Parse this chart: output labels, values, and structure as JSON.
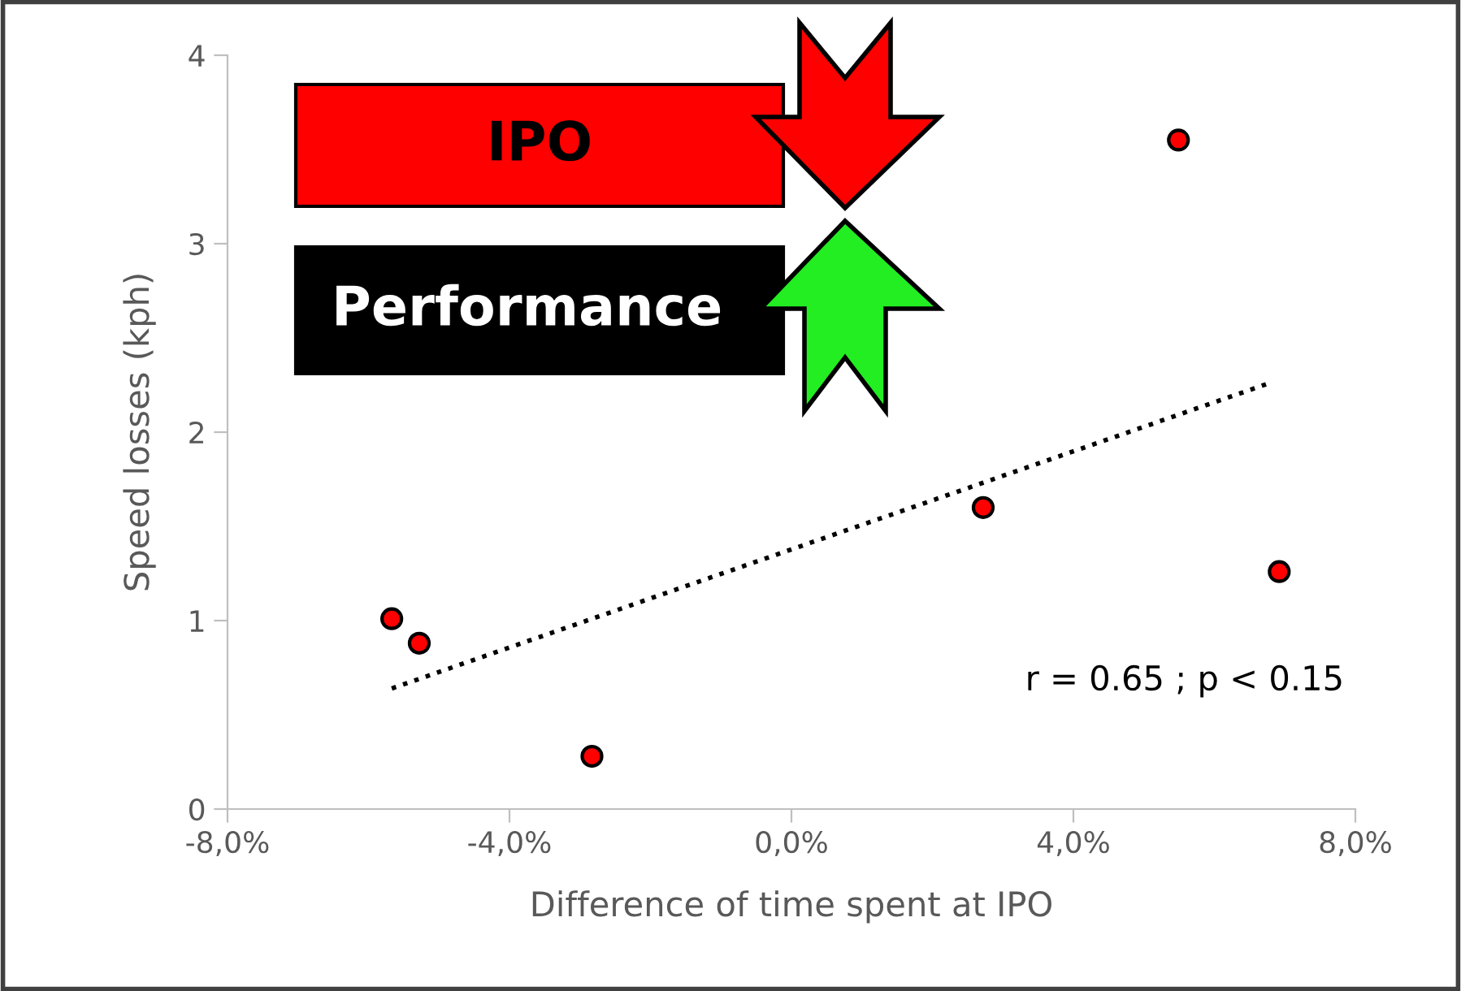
{
  "chart_data": {
    "type": "scatter",
    "xlabel": "Difference of time spent at IPO",
    "ylabel": "Speed losses (kph)",
    "series": [
      {
        "color": "#ff0000",
        "x": [
          -5.67,
          -5.28,
          -2.83,
          2.72,
          5.49,
          6.92
        ],
        "values": [
          1.01,
          0.88,
          0.28,
          1.6,
          3.55,
          1.26
        ],
        "marker": "circle"
      },
      {
        "type": "line",
        "color": "#000000",
        "x": [
          -5.67,
          6.78
        ],
        "values": [
          0.64,
          2.26
        ],
        "line_style": "dotted"
      }
    ],
    "xlim": [
      -8,
      8
    ],
    "xticks": [
      {
        "value": -8,
        "label": "-8,0%"
      },
      {
        "value": -4,
        "label": "-4,0%"
      },
      {
        "value": 0,
        "label": "0,0%"
      },
      {
        "value": 4,
        "label": "4,0%"
      },
      {
        "value": 8,
        "label": "8,0%"
      }
    ],
    "ylim": [
      0,
      4
    ],
    "yticks": [
      0,
      1,
      2,
      3,
      4
    ],
    "annotations": [
      "r = 0.65 ; p < 0.15",
      "IPO",
      "Performance"
    ],
    "grid": false,
    "legend": false
  }
}
